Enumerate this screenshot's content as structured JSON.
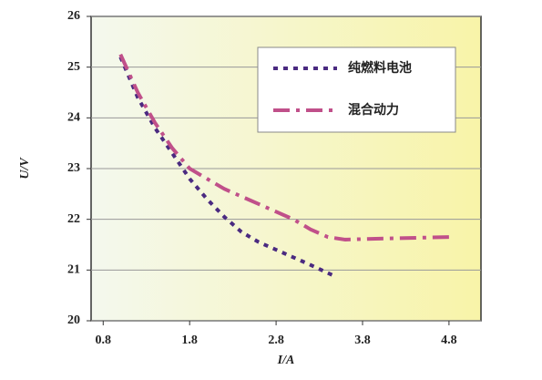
{
  "chart_data": {
    "type": "line",
    "x_label": "I/A",
    "y_label": "U/V",
    "xlim": [
      0.66,
      5.17
    ],
    "xticks": [
      0.8,
      1.8,
      2.8,
      3.8,
      4.8
    ],
    "ylim": [
      20,
      26
    ],
    "yticks": [
      20,
      21,
      22,
      23,
      24,
      25,
      26
    ],
    "grid": true,
    "legend": "upper right",
    "series": [
      {
        "name": "纯燃料电池",
        "color": "#4a2a80",
        "x": [
          1.0,
          1.2,
          1.4,
          1.6,
          1.8,
          2.0,
          2.2,
          2.4,
          2.6,
          2.8,
          3.0,
          3.2,
          3.45
        ],
        "values": [
          25.2,
          24.4,
          23.8,
          23.3,
          22.8,
          22.4,
          22.05,
          21.75,
          21.55,
          21.4,
          21.25,
          21.1,
          20.9
        ]
      },
      {
        "name": "混合动力",
        "color": "#c0508a",
        "x": [
          1.0,
          1.2,
          1.4,
          1.6,
          1.8,
          2.0,
          2.2,
          2.4,
          2.6,
          2.8,
          3.0,
          3.2,
          3.4,
          3.6,
          4.0,
          4.8
        ],
        "values": [
          25.25,
          24.5,
          23.9,
          23.4,
          23.0,
          22.8,
          22.6,
          22.45,
          22.3,
          22.15,
          22.0,
          21.8,
          21.65,
          21.6,
          21.62,
          21.65
        ]
      }
    ]
  }
}
